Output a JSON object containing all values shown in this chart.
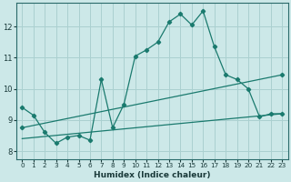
{
  "title": "",
  "xlabel": "Humidex (Indice chaleur)",
  "ylabel": "",
  "bg_color": "#cce8e8",
  "grid_color": "#aad0d0",
  "line_color": "#1a7a6e",
  "xlim": [
    -0.5,
    23.5
  ],
  "ylim": [
    7.75,
    12.75
  ],
  "xticks": [
    0,
    1,
    2,
    3,
    4,
    5,
    6,
    7,
    8,
    9,
    10,
    11,
    12,
    13,
    14,
    15,
    16,
    17,
    18,
    19,
    20,
    21,
    22,
    23
  ],
  "yticks": [
    8,
    9,
    10,
    11,
    12
  ],
  "line1_x": [
    0,
    1,
    2,
    3,
    4,
    5,
    6,
    7,
    8,
    9,
    10,
    11,
    12,
    13,
    14,
    15,
    16,
    17,
    18,
    19,
    20,
    21,
    22,
    23
  ],
  "line1_y": [
    9.4,
    9.15,
    8.6,
    8.25,
    8.45,
    8.5,
    8.35,
    10.3,
    8.75,
    9.5,
    11.05,
    11.25,
    11.5,
    12.15,
    12.4,
    12.05,
    12.5,
    11.35,
    10.45,
    10.3,
    10.0,
    9.1,
    9.2,
    9.2
  ],
  "line2_x": [
    0,
    23
  ],
  "line2_y": [
    8.75,
    10.45
  ],
  "line3_x": [
    0,
    23
  ],
  "line3_y": [
    8.4,
    9.2
  ]
}
